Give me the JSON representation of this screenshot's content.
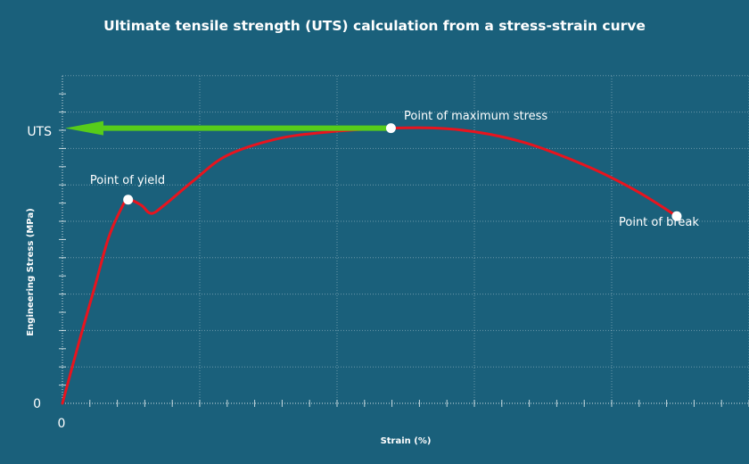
{
  "chart_data": {
    "type": "line",
    "title": "Ultimate tensile strength (UTS) calculation from a stress-strain curve",
    "xlabel": "Strain (%)",
    "ylabel": "Engineering Stress (MPa)",
    "x_tick_labels": [
      "0"
    ],
    "y_tick_labels": [
      "0",
      "UTS"
    ],
    "grid": true,
    "series": [
      {
        "points": [
          [
            0,
            0
          ],
          [
            0.05,
            0.22
          ],
          [
            0.1,
            0.43
          ],
          [
            0.14,
            0.6
          ],
          [
            0.18,
            0.71
          ],
          [
            0.2,
            0.74
          ],
          [
            0.24,
            0.72
          ],
          [
            0.27,
            0.69
          ],
          [
            0.31,
            0.72
          ],
          [
            0.4,
            0.81
          ],
          [
            0.5,
            0.9
          ],
          [
            0.65,
            0.96
          ],
          [
            0.8,
            0.985
          ],
          [
            1.0,
            1.0
          ],
          [
            1.2,
            0.995
          ],
          [
            1.4,
            0.95
          ],
          [
            1.6,
            0.86
          ],
          [
            1.75,
            0.77
          ],
          [
            1.87,
            0.68
          ]
        ],
        "color": "#e8141e"
      }
    ],
    "markers": [
      {
        "label": "Point of yield",
        "x": 0.2,
        "y": 0.74
      },
      {
        "label": "Point of maximum stress",
        "x": 1.0,
        "y": 1.0
      },
      {
        "label": "Point of break",
        "x": 1.87,
        "y": 0.68
      }
    ],
    "uts_arrow": {
      "from_x": 1.0,
      "to_x": 0,
      "y": 1.0,
      "color": "#57cc1a"
    },
    "xlim": [
      0,
      2.09
    ],
    "ylim": [
      0,
      1.19
    ]
  }
}
